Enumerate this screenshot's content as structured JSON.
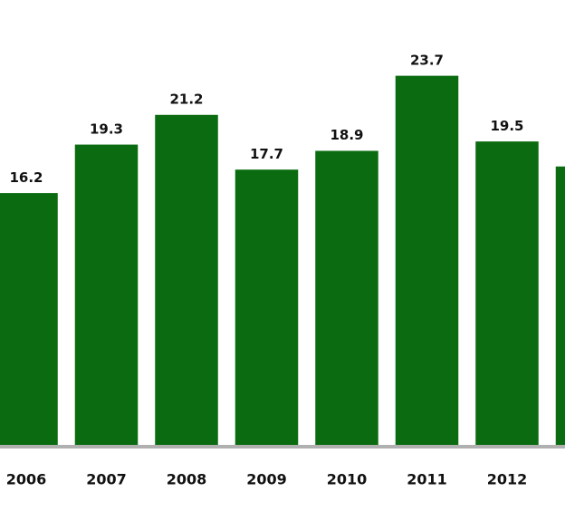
{
  "chart_data": {
    "type": "bar",
    "categories": [
      "2006",
      "2007",
      "2008",
      "2009",
      "2010",
      "2011",
      "2012",
      null
    ],
    "values": [
      16.2,
      19.3,
      21.2,
      17.7,
      18.9,
      23.7,
      19.5,
      17.9
    ],
    "color": "#0b6b10",
    "ylim": [
      0,
      28.5
    ]
  }
}
